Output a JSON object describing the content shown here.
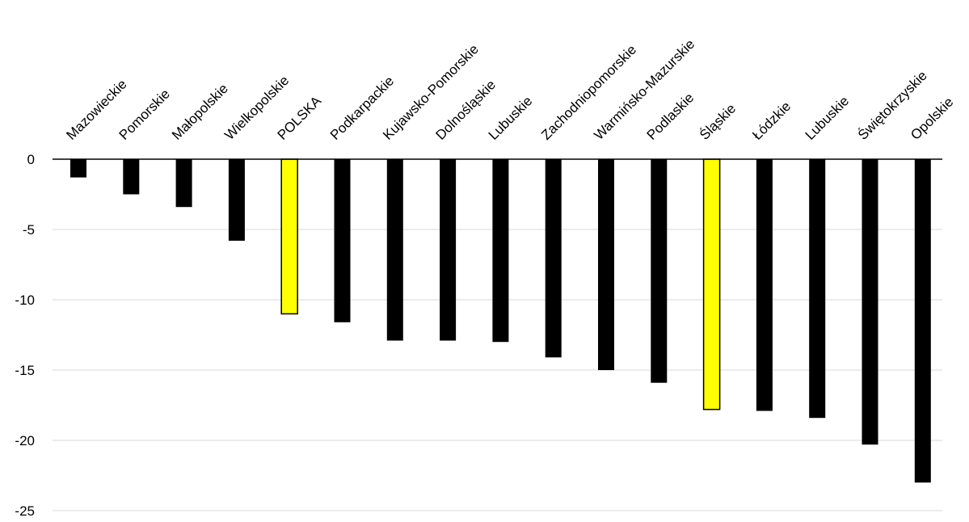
{
  "colors": {
    "background": "#ffffff",
    "grid": "#d9d9d9",
    "bar_default": "#000000",
    "bar_highlight": "#ffff00",
    "bar_outline": "#000000",
    "text": "#000000"
  },
  "chart_data": {
    "type": "bar",
    "orientation": "vertical",
    "title": "",
    "xlabel": "",
    "ylabel": "",
    "ylim": [
      -25,
      0
    ],
    "yticks": [
      0,
      -5,
      -10,
      -15,
      -20,
      -25
    ],
    "grid": true,
    "legend": "none",
    "category_label_position": "top",
    "category_label_rotation_deg": -45,
    "categories": [
      "Mazowieckie",
      "Pomorskie",
      "Małopolskie",
      "Wielkopolskie",
      "POLSKA",
      "Podkarpackie",
      "Kujawsko-Pomorskie",
      "Dolnośląskie",
      "Lubuskie",
      "Zachodniopomorskie",
      "Warmińsko-Mazurskie",
      "Podlaskie",
      "Śląskie",
      "Łódzkie",
      "Lubuskie",
      "Świętokrzyskie",
      "Opolskie"
    ],
    "values": [
      -1.3,
      -2.5,
      -3.4,
      -5.8,
      -11.0,
      -11.6,
      -12.9,
      -12.9,
      -13.0,
      -14.1,
      -15.0,
      -15.9,
      -17.8,
      -17.9,
      -18.4,
      -20.3,
      -23.0
    ],
    "highlighted": [
      "POLSKA",
      "Śląskie"
    ]
  }
}
